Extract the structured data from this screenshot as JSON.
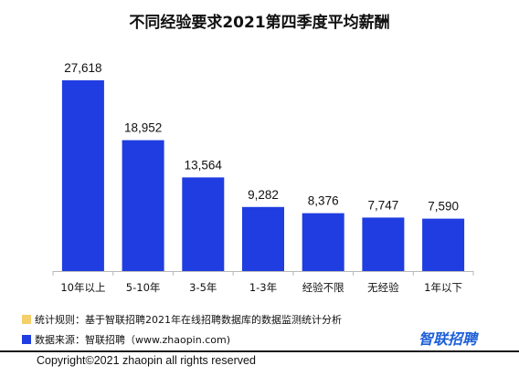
{
  "chart_data": {
    "type": "bar",
    "title": "不同经验要求2021第四季度平均薪酬",
    "categories": [
      "10年以上",
      "5-10年",
      "3-5年",
      "1-3年",
      "经验不限",
      "无经验",
      "1年以下"
    ],
    "values": [
      27618,
      18952,
      13564,
      9282,
      8376,
      7747,
      7590
    ],
    "value_labels": [
      "27,618",
      "18,952",
      "13,564",
      "9,282",
      "8,376",
      "7,747",
      "7,590"
    ],
    "xlabel": "",
    "ylabel": "",
    "ylim": [
      0,
      30000
    ],
    "grid": false,
    "legend": "none",
    "bar_color": "#1f3de0"
  },
  "notes": {
    "rule_text": "统计规则：基于智联招聘2021年在线招聘数据库的数据监测统计分析",
    "rule_color": "#f5cf6a",
    "source_text": "数据来源：智联招聘（www.zhaopin.com)",
    "source_color": "#1f3de0"
  },
  "brand": {
    "logo_text": "智联招聘",
    "logo_color": "#1e5fd8"
  },
  "footer": {
    "copyright": "Copyright©2021 zhaopin all rights reserved"
  }
}
